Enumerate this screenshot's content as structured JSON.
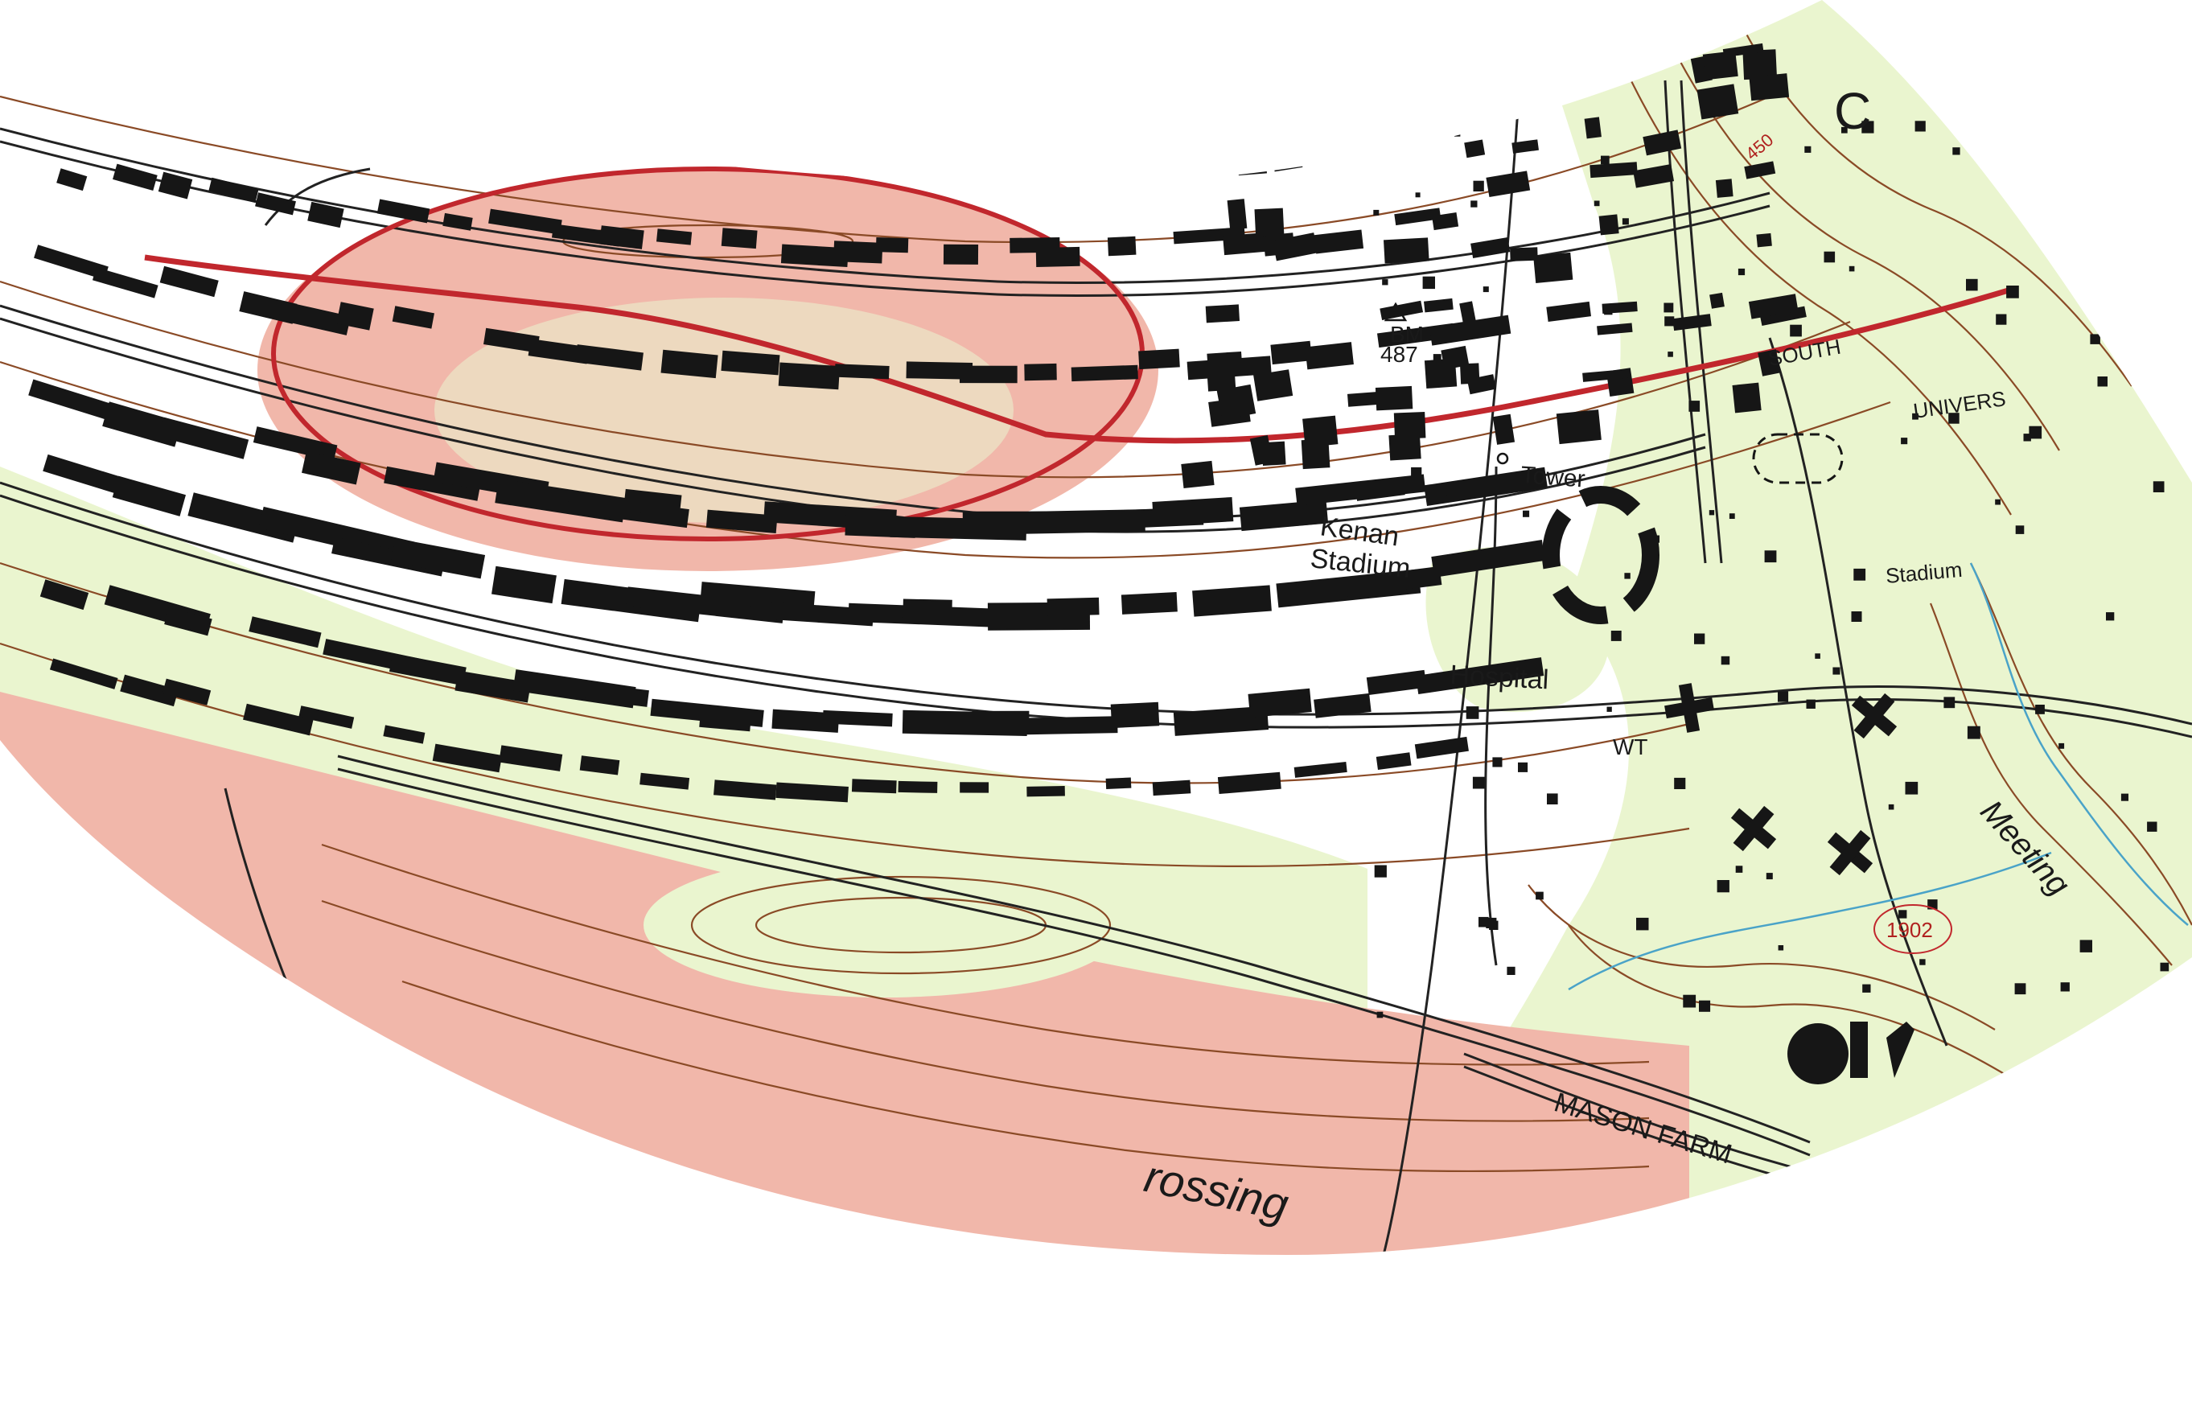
{
  "map": {
    "type": "topographic-quadrangle-warped",
    "colors": {
      "paper": "#ffffff",
      "woodland": "#eaf5cf",
      "urban_tint": "#f1b7aa",
      "contour": "#8a4a26",
      "building": "#161616",
      "road": "#222222",
      "route_red": "#c1272d",
      "water": "#4aa3c8"
    },
    "labels": {
      "kenan": "Kenan",
      "stadium_main": "Stadium",
      "stadium_small": "Stadium",
      "hospital": "Hospital",
      "tower": "Tower",
      "wt": "WT",
      "bm": "BM",
      "bm_elev": "487",
      "south": "SOUTH",
      "univers": "UNIVERS",
      "mason_farm": "MASON  FARM",
      "meeting": "Meeting",
      "crossing": "rossing",
      "contour_450": "450",
      "year_1902": "1902",
      "partial_c": "C"
    },
    "icons": {
      "triangle": "benchmark-triangle-icon",
      "cross": "church-cross-icon"
    }
  }
}
